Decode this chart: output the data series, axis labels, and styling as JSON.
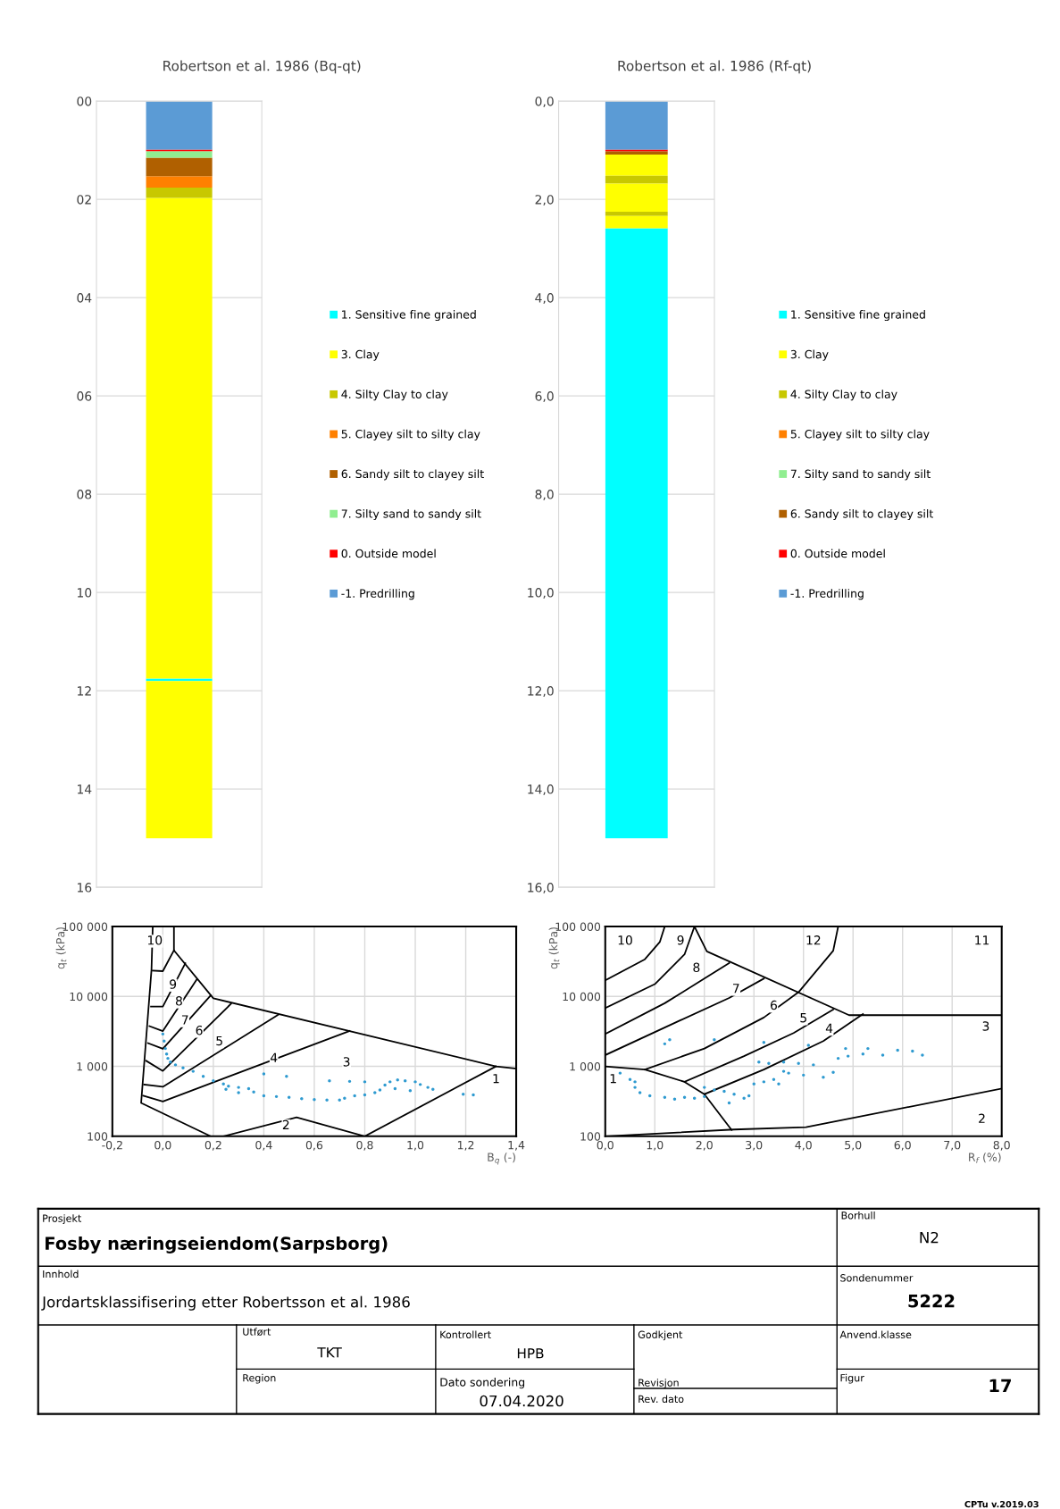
{
  "chart_data": [
    {
      "type": "bar",
      "title": "Robertson et al. 1986 (Bq-qt)",
      "categories": [
        null
      ],
      "ylim": [
        16,
        0
      ],
      "grid": "y",
      "legend": "right",
      "yticks": [
        {
          "value": 0,
          "label": "00"
        },
        {
          "value": 2,
          "label": "02"
        },
        {
          "value": 4,
          "label": "04"
        },
        {
          "value": 6,
          "label": "06"
        },
        {
          "value": 8,
          "label": "08"
        },
        10,
        12,
        14,
        16
      ],
      "series": [
        {
          "name": "1. Sensitive fine grained",
          "color": "#00ffff",
          "values": [
            0.05
          ],
          "base": [
            11.75
          ]
        },
        {
          "name": "3. Clay",
          "color": "#ffff00",
          "values": [
            9.78
          ],
          "base": [
            1.97
          ]
        },
        {
          "name": "4. Silty Clay to clay",
          "color": "#c8c800",
          "values": [
            0.21
          ],
          "base": [
            1.76
          ]
        },
        {
          "name": "5. Clayey silt to silty clay",
          "color": "#ff8000",
          "values": [
            0.23
          ],
          "base": [
            1.53
          ]
        },
        {
          "name": "6. Sandy silt to clayey silt",
          "color": "#b06000",
          "values": [
            0.38
          ],
          "base": [
            1.15
          ]
        },
        {
          "name": "7. Silty sand to sandy silt",
          "color": "#90ee90",
          "values": [
            0.13
          ],
          "base": [
            1.02
          ]
        },
        {
          "name": "0. Outside model",
          "color": "#ff0000",
          "values": [
            0.03
          ],
          "base": [
            0.99
          ]
        },
        {
          "name": "-1. Predrilling",
          "color": "#5b9bd5",
          "values": [
            0.99
          ],
          "base": [
            0
          ]
        },
        {
          "color": "#ffff00",
          "values": [
            3.2
          ],
          "base": [
            11.8
          ]
        }
      ]
    },
    {
      "type": "bar",
      "title": "Robertson et al. 1986 (Rf-qt)",
      "categories": [
        null
      ],
      "ylim": [
        16,
        0
      ],
      "grid": "y",
      "legend": "right",
      "yticks": [
        {
          "value": 0,
          "label": "0,0"
        },
        {
          "value": 2,
          "label": "2,0"
        },
        {
          "value": 4,
          "label": "4,0"
        },
        {
          "value": 6,
          "label": "6,0"
        },
        {
          "value": 8,
          "label": "8,0"
        },
        {
          "value": 10,
          "label": "10,0"
        },
        {
          "value": 12,
          "label": "12,0"
        },
        {
          "value": 14,
          "label": "14,0"
        },
        {
          "value": 16,
          "label": "16,0"
        }
      ],
      "series": [
        {
          "name": "1. Sensitive fine grained",
          "color": "#00ffff",
          "values": [
            12.41
          ],
          "base": [
            2.59
          ]
        },
        {
          "name": "3. Clay",
          "color": "#ffff00",
          "values": [
            0.43
          ],
          "base": [
            1.09
          ]
        },
        {
          "name": "4. Silty Clay to clay",
          "color": "#c8c800",
          "values": [
            0.16
          ],
          "base": [
            1.52
          ]
        },
        {
          "name": "5. Clayey silt to silty clay",
          "color": "#ff8000",
          "values": [
            null
          ],
          "base": [
            null
          ]
        },
        {
          "name": "7. Silty sand to sandy silt",
          "color": "#90ee90",
          "values": [
            null
          ],
          "base": [
            null
          ]
        },
        {
          "name": "6. Sandy silt to clayey silt",
          "color": "#b06000",
          "values": [
            0.07
          ],
          "base": [
            1.02
          ]
        },
        {
          "name": "0. Outside model",
          "color": "#ff0000",
          "values": [
            0.03
          ],
          "base": [
            0.99
          ]
        },
        {
          "name": "-1. Predrilling",
          "color": "#5b9bd5",
          "values": [
            0.99
          ],
          "base": [
            0
          ]
        },
        {
          "color": "#ffff00",
          "values": [
            0.57
          ],
          "base": [
            1.68
          ]
        },
        {
          "color": "#c8c800",
          "values": [
            0.09
          ],
          "base": [
            2.25
          ]
        },
        {
          "color": "#ffff00",
          "values": [
            0.25
          ],
          "base": [
            2.34
          ]
        }
      ]
    },
    {
      "type": "scatter",
      "xlabel": "B$_{q}$ (-)",
      "ylabel": "q$_{t}$ (kPa)",
      "log": "y",
      "grid": true,
      "xlim": [
        -0.2,
        1.4
      ],
      "xticks": [
        {
          "value": -0.2,
          "label": "-0,2"
        },
        {
          "value": 0,
          "label": "0,0"
        },
        {
          "value": 0.2,
          "label": "0,2"
        },
        {
          "value": 0.4,
          "label": "0,4"
        },
        {
          "value": 0.6,
          "label": "0,6"
        },
        {
          "value": 0.8,
          "label": "0,8"
        },
        {
          "value": 1.0,
          "label": "1,0"
        },
        {
          "value": 1.2,
          "label": "1,2"
        },
        {
          "value": 1.4,
          "label": "1,4"
        }
      ],
      "ylim": [
        100,
        100000
      ],
      "yticks": [
        100,
        {
          "value": 1000,
          "label": "1 000"
        },
        {
          "value": 10000,
          "label": "10 000"
        },
        {
          "value": 100000,
          "label": "100 000"
        }
      ],
      "series": [
        {
          "type": "scatter",
          "marker": "circle",
          "color": "#2e9ad0",
          "x": [
            0.0,
            0.005,
            0.01,
            0.015,
            0.02,
            0.03,
            0.05,
            0.08,
            0.12,
            0.16,
            0.2,
            0.24,
            0.26,
            0.3,
            0.34,
            0.36,
            0.4,
            0.45,
            0.5,
            0.55,
            0.6,
            0.65,
            0.7,
            0.72,
            0.76,
            0.8,
            0.84,
            0.86,
            0.88,
            0.9,
            0.93,
            0.96,
            1.0,
            1.02,
            1.05,
            1.07,
            0.98,
            0.92,
            0.4,
            0.49,
            0.66,
            0.74,
            0.8,
            1.19,
            1.23,
            0.3,
            0.25
          ],
          "values": [
            2900,
            2300,
            1800,
            1500,
            1300,
            1150,
            1050,
            950,
            850,
            720,
            620,
            560,
            520,
            500,
            480,
            430,
            380,
            370,
            360,
            345,
            335,
            330,
            330,
            350,
            380,
            390,
            420,
            460,
            540,
            600,
            640,
            620,
            600,
            550,
            500,
            470,
            450,
            480,
            780,
            720,
            620,
            610,
            600,
            400,
            390,
            420,
            470
          ]
        },
        {
          "type": "line",
          "color": "#000000",
          "x": [
            0.19,
            -0.086,
            -0.045,
            -0.04
          ],
          "values": [
            100,
            300,
            24000,
            100000
          ]
        },
        {
          "type": "line",
          "color": "#000000",
          "x": [
            0.044,
            0.044,
            0.2,
            1.32,
            1.4
          ],
          "values": [
            100000,
            45600,
            9400,
            1000,
            930
          ]
        },
        {
          "type": "line",
          "color": "#000000",
          "x": [
            0.8,
            1.32
          ],
          "values": [
            100,
            1000
          ]
        },
        {
          "type": "line",
          "color": "#000000",
          "x": [
            0.24,
            0.53,
            0.8
          ],
          "values": [
            100,
            186,
            100
          ]
        },
        {
          "type": "line",
          "color": "#000000",
          "x": [
            -0.078,
            0.0,
            0.74
          ],
          "values": [
            380,
            315,
            3200
          ]
        },
        {
          "type": "line",
          "color": "#000000",
          "x": [
            -0.074,
            0.0,
            0.456
          ],
          "values": [
            550,
            510,
            5430
          ]
        },
        {
          "type": "line",
          "color": "#000000",
          "x": [
            -0.066,
            0.0,
            0.27
          ],
          "values": [
            1200,
            860,
            7850
          ]
        },
        {
          "type": "line",
          "color": "#000000",
          "x": [
            -0.059,
            0.0,
            0.19
          ],
          "values": [
            2150,
            1780,
            10400
          ]
        },
        {
          "type": "line",
          "color": "#000000",
          "x": [
            -0.053,
            0.0,
            0.135
          ],
          "values": [
            3760,
            3200,
            17700
          ]
        },
        {
          "type": "line",
          "color": "#000000",
          "x": [
            -0.047,
            0.0,
            0.089
          ],
          "values": [
            7150,
            7150,
            29800
          ]
        },
        {
          "type": "line",
          "color": "#000000",
          "x": [
            -0.04,
            0.0,
            0.044
          ],
          "values": [
            23400,
            23000,
            45600
          ]
        }
      ],
      "annotations": [
        "10",
        "9",
        "8",
        "7",
        "6",
        "5",
        "4",
        "3",
        "2",
        "1"
      ]
    },
    {
      "type": "scatter",
      "xlabel": "R$_{f}$ (%)",
      "ylabel": "q$_{t}$ (kPa)",
      "log": "y",
      "grid": true,
      "xlim": [
        0,
        8
      ],
      "xticks": [
        {
          "value": 0,
          "label": "0,0"
        },
        {
          "value": 1,
          "label": "1,0"
        },
        {
          "value": 2,
          "label": "2,0"
        },
        {
          "value": 3,
          "label": "3,0"
        },
        {
          "value": 4,
          "label": "4,0"
        },
        {
          "value": 5,
          "label": "5,0"
        },
        {
          "value": 6,
          "label": "6,0"
        },
        {
          "value": 7,
          "label": "7,0"
        },
        {
          "value": 8,
          "label": "8,0"
        }
      ],
      "ylim": [
        100,
        100000
      ],
      "yticks": [
        100,
        {
          "value": 1000,
          "label": "1 000"
        },
        {
          "value": 10000,
          "label": "10 000"
        },
        {
          "value": 100000,
          "label": "100 000"
        }
      ],
      "series": [
        {
          "type": "scatter",
          "marker": "circle",
          "color": "#2e9ad0",
          "x": [
            0.3,
            0.5,
            0.6,
            0.6,
            0.7,
            0.9,
            1.2,
            1.4,
            1.6,
            1.8,
            2.0,
            2.2,
            2.4,
            2.6,
            2.8,
            2.9,
            3.0,
            3.2,
            3.4,
            3.5,
            3.6,
            3.7,
            3.9,
            4.0,
            4.2,
            4.4,
            4.6,
            4.7,
            4.9,
            5.2,
            5.3,
            5.6,
            5.9,
            6.2,
            6.4,
            1.2,
            1.3,
            2.2,
            3.2,
            4.1,
            4.85,
            3.1,
            3.3,
            3.6,
            2.0,
            2.5
          ],
          "values": [
            800,
            650,
            600,
            500,
            420,
            380,
            360,
            340,
            360,
            350,
            370,
            460,
            440,
            400,
            350,
            380,
            560,
            600,
            650,
            560,
            850,
            800,
            1100,
            750,
            1050,
            700,
            820,
            1300,
            1400,
            1500,
            1800,
            1450,
            1700,
            1650,
            1450,
            2100,
            2400,
            2400,
            2200,
            2000,
            1800,
            1150,
            1100,
            1150,
            500,
            300
          ]
        },
        {
          "type": "line",
          "color": "#000000",
          "x": [
            0,
            0.8,
            1.1,
            1.2
          ],
          "values": [
            17000,
            34000,
            60000,
            100000
          ]
        },
        {
          "type": "line",
          "color": "#000000",
          "x": [
            0,
            1.0,
            1.6,
            1.8,
            2.05,
            4.92,
            8
          ],
          "values": [
            6800,
            15000,
            40000,
            100000,
            44000,
            5400,
            5400
          ]
        },
        {
          "type": "line",
          "color": "#000000",
          "x": [
            0,
            1.2,
            2.0,
            2.5
          ],
          "values": [
            2900,
            8000,
            18000,
            30000
          ]
        },
        {
          "type": "line",
          "color": "#000000",
          "x": [
            0,
            1.5,
            2.5,
            3.2
          ],
          "values": [
            1450,
            4500,
            9500,
            18000
          ]
        },
        {
          "type": "line",
          "color": "#000000",
          "x": [
            0.8,
            2.0,
            3.2,
            3.9,
            4.6,
            4.7
          ],
          "values": [
            900,
            1800,
            5000,
            11500,
            45000,
            100000
          ]
        },
        {
          "type": "line",
          "color": "#000000",
          "x": [
            1.6,
            2.8,
            3.8,
            4.6
          ],
          "values": [
            600,
            1400,
            3000,
            6500
          ]
        },
        {
          "type": "line",
          "color": "#000000",
          "x": [
            2.0,
            3.2,
            4.4,
            5.2
          ],
          "values": [
            400,
            900,
            2300,
            5600
          ]
        },
        {
          "type": "line",
          "color": "#000000",
          "x": [
            0,
            0.8,
            1.6,
            2.0,
            2.55
          ],
          "values": [
            1000,
            900,
            600,
            400,
            123
          ]
        },
        {
          "type": "line",
          "color": "#000000",
          "x": [
            0,
            2.6,
            4.05,
            8
          ],
          "values": [
            100,
            125,
            135,
            480
          ]
        }
      ],
      "annotations": [
        "10",
        "9",
        "8",
        "7",
        "6",
        "5",
        "4",
        "3",
        "12",
        "11",
        "1",
        "2"
      ]
    },
    {
      "type": "other",
      "annotations": [
        "Prosjekt",
        "Fosby næringseiendom(Sarpsborg)",
        "Borhull",
        "N2",
        "Innhold",
        "Jordartsklassifisering etter Robertsson et al. 1986",
        "Sondenummer",
        "5222",
        "Utført",
        "TKT",
        "Kontrollert",
        "HPB",
        "Godkjent",
        "Anvend.klasse",
        "Region",
        "Dato sondering",
        "07.04.2020",
        "Revisjon",
        "Rev. dato",
        "Figur",
        "17",
        "CPTu v.2019.03"
      ]
    }
  ]
}
